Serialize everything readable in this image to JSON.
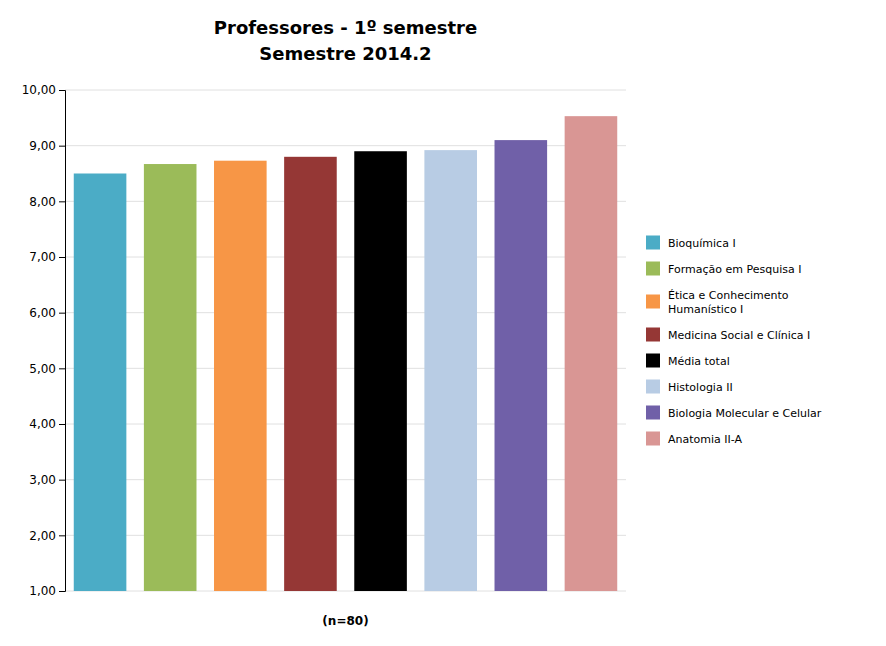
{
  "chart_data": {
    "type": "bar",
    "title": "Professores - 1º semestre",
    "subtitle": "Semestre 2014.2",
    "xlabel": "(n=80)",
    "categories": [
      "Bioquímica I",
      "Formação em Pesquisa I",
      "Ética e Conhecimento\nHumanístico I",
      "Medicina Social e Clínica I",
      "Média total",
      "Histologia II",
      "Biologia Molecular e Celular",
      "Anatomia II-A"
    ],
    "values": [
      8.5,
      8.67,
      8.73,
      8.8,
      8.9,
      8.92,
      9.1,
      9.53
    ],
    "colors": [
      "#4bacc6",
      "#9bbb59",
      "#f79646",
      "#953735",
      "#000000",
      "#b8cce4",
      "#7060a8",
      "#d99694"
    ],
    "ylim": [
      1.0,
      10.0
    ],
    "yticks": [
      {
        "value": 1,
        "label": "1,00"
      },
      {
        "value": 2,
        "label": "2,00"
      },
      {
        "value": 3,
        "label": "3,00"
      },
      {
        "value": 4,
        "label": "4,00"
      },
      {
        "value": 5,
        "label": "5,00"
      },
      {
        "value": 6,
        "label": "6,00"
      },
      {
        "value": 7,
        "label": "7,00"
      },
      {
        "value": 8,
        "label": "8,00"
      },
      {
        "value": 9,
        "label": "9,00"
      },
      {
        "value": 10,
        "label": "10,00"
      }
    ],
    "grid": true,
    "legend": "right",
    "tick_labels": "y"
  }
}
